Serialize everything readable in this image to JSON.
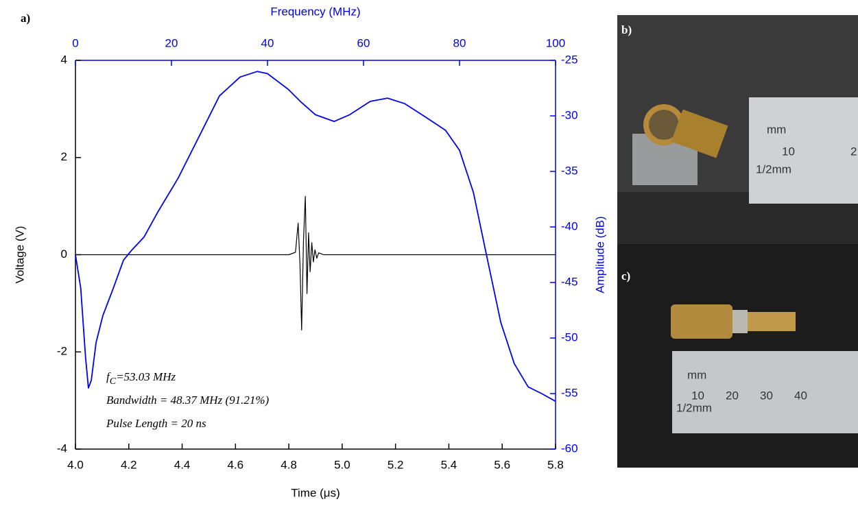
{
  "chart_data": {
    "type": "line",
    "panel_label": "a)",
    "xlabel": "Time (μs)",
    "x2label": "Frequency (MHz)",
    "ylabel": "Voltage (V)",
    "y2label": "Amplitude (dB)",
    "xlim": [
      4.0,
      5.8
    ],
    "xticks": [
      {
        "value": 4.0,
        "label": "4.0"
      },
      {
        "value": 4.2,
        "label": "4.2"
      },
      {
        "value": 4.4,
        "label": "4.4"
      },
      {
        "value": 4.6,
        "label": "4.6"
      },
      {
        "value": 4.8,
        "label": "4.8"
      },
      {
        "value": 5.0,
        "label": "5.0"
      },
      {
        "value": 5.2,
        "label": "5.2"
      },
      {
        "value": 5.4,
        "label": "5.4"
      },
      {
        "value": 5.6,
        "label": "5.6"
      },
      {
        "value": 5.8,
        "label": "5.8"
      }
    ],
    "x2lim": [
      0,
      100
    ],
    "x2ticks": [
      0,
      20,
      40,
      60,
      80,
      100
    ],
    "ylim": [
      -4,
      4
    ],
    "yticks": [
      -4,
      -2,
      0,
      2,
      4
    ],
    "y2lim": [
      -60,
      -25
    ],
    "y2ticks": [
      -60,
      -55,
      -50,
      -45,
      -40,
      -35,
      -30,
      -25
    ],
    "series": [
      {
        "color": "#000000",
        "axis": "y",
        "x": [
          4.0,
          4.8,
          4.825,
          4.835,
          4.842,
          4.848,
          4.855,
          4.862,
          4.868,
          4.874,
          4.88,
          4.886,
          4.892,
          4.898,
          4.905,
          4.912,
          4.93,
          5.8
        ],
        "values": [
          0,
          0,
          0.05,
          0.65,
          -0.2,
          -1.55,
          0.3,
          1.2,
          -0.8,
          0.45,
          -0.35,
          0.25,
          -0.15,
          0.1,
          -0.07,
          0.04,
          0,
          0
        ]
      },
      {
        "color": "#0000ee",
        "axis": "y2",
        "x_axis": "x2",
        "x": [
          0,
          1.1,
          2.1,
          2.7,
          3.3,
          4.3,
          5.7,
          7.9,
          10,
          11.7,
          14.3,
          17.1,
          21.4,
          25.7,
          30,
          34.3,
          37.9,
          40,
          44.3,
          47.1,
          50,
          53.9,
          57.1,
          61.4,
          65,
          68.6,
          72.9,
          77.1,
          80,
          82.9,
          85.7,
          88.6,
          91.4,
          94.3,
          97.1,
          100
        ],
        "values": [
          -42.5,
          -45.5,
          -51.7,
          -54.5,
          -53.8,
          -50.4,
          -48.0,
          -45.5,
          -43.0,
          -42.1,
          -40.9,
          -38.7,
          -35.6,
          -31.9,
          -28.2,
          -26.5,
          -26.0,
          -26.2,
          -27.6,
          -28.8,
          -29.9,
          -30.5,
          -29.9,
          -28.7,
          -28.4,
          -28.9,
          -30.1,
          -31.3,
          -33.1,
          -36.9,
          -42.7,
          -48.6,
          -52.3,
          -54.4,
          -55.0,
          -55.7
        ]
      }
    ],
    "annotations": [
      {
        "parts": [
          "f",
          "C",
          "=53.03 MHz"
        ]
      },
      {
        "parts": [
          "Bandwidth = 48.37 MHz (91.21%)"
        ]
      },
      {
        "parts": [
          "Pulse Length = 20 ns"
        ]
      }
    ]
  },
  "photos": [
    {
      "label": "b)",
      "ruler_texts": [
        "mm",
        "10",
        "2",
        "1/2mm"
      ]
    },
    {
      "label": "c)",
      "ruler_texts": [
        "mm",
        "10",
        "20",
        "30",
        "40",
        "1/2mm"
      ]
    }
  ]
}
